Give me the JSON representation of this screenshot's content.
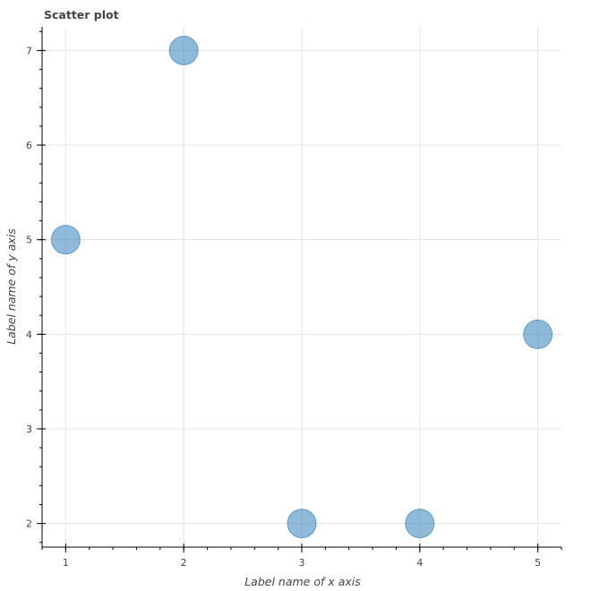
{
  "chart_data": {
    "type": "scatter",
    "title": "Scatter plot",
    "xlabel": "Label name of x axis",
    "ylabel": "Label name of y axis",
    "series": [
      {
        "x": [
          1,
          2,
          3,
          4,
          5
        ],
        "y": [
          5,
          7,
          2,
          2,
          4
        ]
      }
    ],
    "xlim": [
      0.8,
      5.2
    ],
    "ylim": [
      1.75,
      7.25
    ],
    "xticks": [
      1,
      2,
      3,
      4,
      5
    ],
    "yticks": [
      2,
      3,
      4,
      5,
      6,
      7
    ],
    "x_minor_step": 0.2,
    "y_minor_step": 0.2,
    "grid": true,
    "legend": false,
    "colors": {
      "marker_fill": "#1f77b4",
      "marker_stroke": "#1f77b4",
      "grid": "#e5e5e5",
      "axis": "#000000",
      "text": "#444444"
    }
  }
}
